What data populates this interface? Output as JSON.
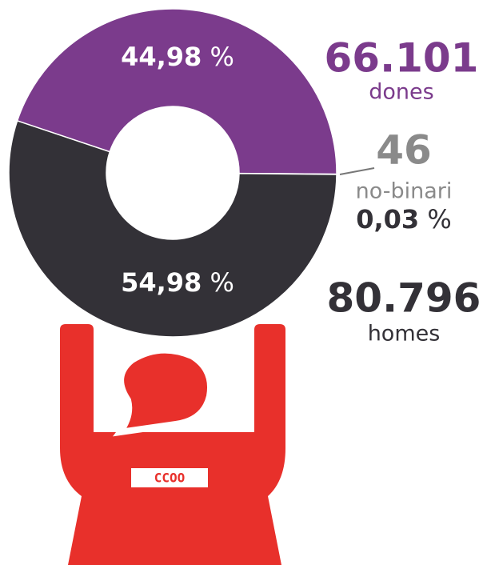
{
  "chart_data": {
    "type": "donut",
    "series": [
      {
        "name": "dones",
        "color": "#7b3b8c",
        "values": [
          44.98
        ],
        "value_labels": [
          "44,98 %"
        ],
        "count": 66101,
        "count_label": "66.101"
      },
      {
        "name": "no-binari",
        "color": "#d9d9d9",
        "values": [
          0.03
        ],
        "value_labels": [
          "0,03 %"
        ],
        "count": 46,
        "count_label": "46"
      },
      {
        "name": "homes",
        "color": "#333137",
        "values": [
          54.98
        ],
        "value_labels": [
          "54,98 %"
        ],
        "count": 80796,
        "count_label": "80.796"
      }
    ],
    "logo": "CCOO"
  }
}
